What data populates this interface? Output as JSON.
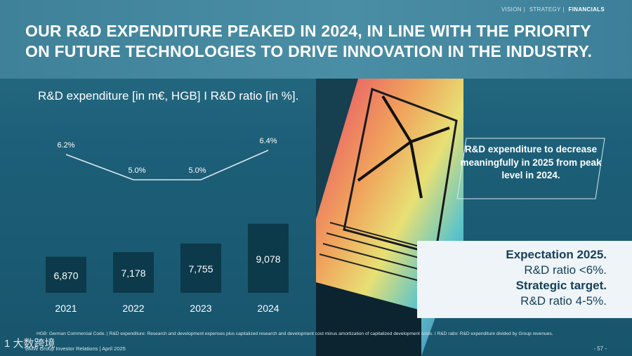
{
  "nav": {
    "items": [
      "VISION",
      "STRATEGY",
      "FINANCIALS"
    ],
    "active_index": 2
  },
  "title": "OUR R&D EXPENDITURE PEAKED IN 2024, IN LINE WITH THE PRIORITY ON FUTURE TECHNOLOGIES TO DRIVE INNOVATION IN THE INDUSTRY.",
  "chart_data": {
    "type": "bar",
    "title": "R&D expenditure [in m€, HGB] I R&D ratio [in %].",
    "categories": [
      "2021",
      "2022",
      "2023",
      "2024"
    ],
    "series": [
      {
        "name": "R&D expenditure",
        "values": [
          6870,
          7178,
          7755,
          9078
        ],
        "value_labels": [
          "6,870",
          "7,178",
          "7,755",
          "9,078"
        ],
        "type": "bar"
      },
      {
        "name": "R&D ratio",
        "values": [
          6.2,
          5.0,
          5.0,
          6.4
        ],
        "value_labels": [
          "6.2%",
          "5.0%",
          "5.0%",
          "6.4%"
        ],
        "type": "line"
      }
    ],
    "grid": false,
    "colors": {
      "bar": "#0c3a4a",
      "line": "#d9e8ee"
    }
  },
  "callout": {
    "text": "R&D expenditure to decrease meaningfully in 2025 from peak level in 2024."
  },
  "panel": {
    "line1": "Expectation 2025.",
    "line2": "R&D ratio <6%.",
    "line3": "Strategic target.",
    "line4": "R&D ratio 4-5%."
  },
  "footnote": "HGB: German Commercial Code. | R&D expenditure: Research and development expenses plus capitalized research and development cost minus amortization of capitalized development costs. I R&D ratio: R&D expenditure divided by Group revenues.",
  "footer": {
    "left": "BMW Group Investor Relations | April 2025",
    "right": "- 57 -"
  },
  "watermark": "1 大数跨境"
}
